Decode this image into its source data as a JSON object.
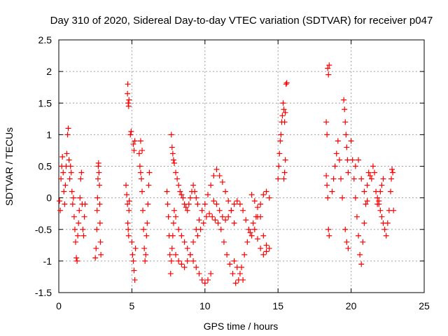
{
  "chart_data": {
    "type": "scatter",
    "title": "Day 310 of 2020, Sidereal Day-to-day VTEC variation (SDTVAR) for receiver p047",
    "xlabel": "GPS time / hours",
    "ylabel": "SDTVAR / TECUs",
    "xlim": [
      0,
      25
    ],
    "ylim": [
      -1.5,
      2.5
    ],
    "x_ticks": [
      0,
      5,
      10,
      15,
      20,
      25
    ],
    "y_ticks": [
      -1.5,
      -1,
      -0.5,
      0,
      0.5,
      1,
      1.5,
      2,
      2.5
    ],
    "x_tick_labels": [
      "0",
      "5",
      "10",
      "15",
      "20",
      "25"
    ],
    "y_tick_labels": [
      "-1.5",
      "-1",
      "-0.5",
      "0",
      "0.5",
      "1",
      "1.5",
      "2",
      "2.5"
    ],
    "grid": true,
    "marker": "+",
    "series": [
      {
        "name": "SDTVAR",
        "color": "#ff0000",
        "points": [
          [
            0.05,
            -0.05
          ],
          [
            0.1,
            -0.2
          ],
          [
            0.15,
            0.3
          ],
          [
            0.2,
            0.5
          ],
          [
            0.25,
            0.65
          ],
          [
            0.3,
            0.4
          ],
          [
            0.35,
            0.1
          ],
          [
            0.4,
            -0.1
          ],
          [
            0.45,
            0.2
          ],
          [
            0.5,
            0.5
          ],
          [
            0.55,
            0.7
          ],
          [
            0.6,
            1.0
          ],
          [
            0.65,
            1.1
          ],
          [
            0.7,
            0.6
          ],
          [
            0.75,
            0.3
          ],
          [
            0.8,
            0.5
          ],
          [
            0.85,
            0.4
          ],
          [
            0.9,
            0.1
          ],
          [
            0.95,
            -0.1
          ],
          [
            1.0,
            0.0
          ],
          [
            1.05,
            -0.3
          ],
          [
            1.1,
            -0.5
          ],
          [
            1.15,
            -0.7
          ],
          [
            1.2,
            -0.95
          ],
          [
            1.25,
            -1.0
          ],
          [
            1.3,
            -0.6
          ],
          [
            1.35,
            -0.4
          ],
          [
            1.4,
            -0.2
          ],
          [
            1.45,
            0.0
          ],
          [
            1.5,
            0.3
          ],
          [
            1.55,
            0.4
          ],
          [
            1.6,
            -0.1
          ],
          [
            1.65,
            -0.5
          ],
          [
            1.7,
            -0.6
          ],
          [
            1.75,
            -0.3
          ],
          [
            1.8,
            -0.1
          ],
          [
            2.5,
            -0.95
          ],
          [
            2.55,
            -0.8
          ],
          [
            2.6,
            -0.5
          ],
          [
            2.62,
            -0.2
          ],
          [
            2.65,
            0.0
          ],
          [
            2.68,
            0.3
          ],
          [
            2.7,
            0.5
          ],
          [
            2.72,
            0.55
          ],
          [
            2.75,
            0.4
          ],
          [
            2.78,
            0.2
          ],
          [
            2.8,
            -0.1
          ],
          [
            2.82,
            -0.4
          ],
          [
            2.85,
            -0.7
          ],
          [
            2.88,
            -0.9
          ],
          [
            4.6,
            0.2
          ],
          [
            4.65,
            0.05
          ],
          [
            4.7,
            -0.1
          ],
          [
            4.72,
            -0.4
          ],
          [
            4.75,
            -0.5
          ],
          [
            4.78,
            -0.6
          ],
          [
            4.8,
            -0.2
          ],
          [
            4.82,
            -0.05
          ],
          [
            4.7,
            1.65
          ],
          [
            4.72,
            1.8
          ],
          [
            4.75,
            1.5
          ],
          [
            4.78,
            1.45
          ],
          [
            4.8,
            1.55
          ],
          [
            4.9,
            1.0
          ],
          [
            4.95,
            1.05
          ],
          [
            5.0,
            -0.7
          ],
          [
            5.05,
            -0.9
          ],
          [
            5.1,
            -1.0
          ],
          [
            5.15,
            -1.15
          ],
          [
            5.2,
            -1.3
          ],
          [
            5.25,
            -0.8
          ],
          [
            5.1,
            0.85
          ],
          [
            5.15,
            0.75
          ],
          [
            5.2,
            0.9
          ],
          [
            5.5,
            0.7
          ],
          [
            5.55,
            0.5
          ],
          [
            5.6,
            0.4
          ],
          [
            5.65,
            0.3
          ],
          [
            5.7,
            0.1
          ],
          [
            5.75,
            -0.2
          ],
          [
            5.8,
            -0.5
          ],
          [
            5.85,
            -0.8
          ],
          [
            5.9,
            -1.0
          ],
          [
            5.95,
            -0.9
          ],
          [
            6.0,
            -0.6
          ],
          [
            6.05,
            -0.4
          ],
          [
            6.1,
            -0.1
          ],
          [
            6.15,
            0.2
          ],
          [
            6.2,
            0.4
          ],
          [
            5.6,
            0.9
          ],
          [
            5.7,
            0.75
          ],
          [
            7.4,
            0.1
          ],
          [
            7.45,
            -0.1
          ],
          [
            7.5,
            -0.3
          ],
          [
            7.55,
            -0.6
          ],
          [
            7.6,
            -0.9
          ],
          [
            7.65,
            -1.2
          ],
          [
            7.7,
            -1.0
          ],
          [
            7.75,
            -0.8
          ],
          [
            7.8,
            -0.6
          ],
          [
            7.85,
            -0.4
          ],
          [
            7.9,
            -0.2
          ],
          [
            7.7,
            1.0
          ],
          [
            7.75,
            0.8
          ],
          [
            7.8,
            0.7
          ],
          [
            7.85,
            0.6
          ],
          [
            7.9,
            0.55
          ],
          [
            8.0,
            0.4
          ],
          [
            8.1,
            0.3
          ],
          [
            8.2,
            0.2
          ],
          [
            8.3,
            0.1
          ],
          [
            8.4,
            0.05
          ],
          [
            8.5,
            0.0
          ],
          [
            8.6,
            -0.1
          ],
          [
            8.7,
            -0.15
          ],
          [
            8.8,
            -0.2
          ],
          [
            8.9,
            -0.1
          ],
          [
            9.0,
            0.0
          ],
          [
            9.1,
            0.1
          ],
          [
            9.2,
            0.2
          ],
          [
            9.3,
            0.1
          ],
          [
            9.4,
            0.0
          ],
          [
            9.5,
            -0.1
          ],
          [
            8.0,
            -0.3
          ],
          [
            8.2,
            -0.5
          ],
          [
            8.4,
            -0.6
          ],
          [
            8.6,
            -0.7
          ],
          [
            8.8,
            -0.8
          ],
          [
            9.0,
            -0.9
          ],
          [
            9.2,
            -1.0
          ],
          [
            9.4,
            -1.1
          ],
          [
            9.6,
            -1.2
          ],
          [
            9.8,
            -1.3
          ],
          [
            10.0,
            -1.35
          ],
          [
            10.2,
            -1.3
          ],
          [
            10.4,
            -1.2
          ],
          [
            8.0,
            -0.9
          ],
          [
            8.2,
            -1.0
          ],
          [
            8.4,
            -1.05
          ],
          [
            8.6,
            -1.1
          ],
          [
            8.8,
            -1.0
          ],
          [
            9.0,
            -0.9
          ],
          [
            9.2,
            -0.7
          ],
          [
            9.4,
            -0.5
          ],
          [
            9.6,
            -0.35
          ],
          [
            9.8,
            -0.2
          ],
          [
            10.0,
            -0.1
          ],
          [
            10.2,
            0.05
          ],
          [
            10.4,
            0.2
          ],
          [
            10.6,
            0.35
          ],
          [
            10.8,
            0.45
          ],
          [
            11.0,
            0.35
          ],
          [
            11.2,
            0.25
          ],
          [
            11.4,
            0.1
          ],
          [
            11.6,
            -0.05
          ],
          [
            11.8,
            -0.2
          ],
          [
            12.0,
            -0.4
          ],
          [
            9.5,
            -0.6
          ],
          [
            9.7,
            -0.5
          ],
          [
            9.9,
            -0.4
          ],
          [
            10.1,
            -0.3
          ],
          [
            10.3,
            -0.25
          ],
          [
            10.5,
            -0.3
          ],
          [
            10.7,
            -0.35
          ],
          [
            10.9,
            -0.4
          ],
          [
            11.1,
            -0.5
          ],
          [
            11.3,
            -0.7
          ],
          [
            11.5,
            -0.9
          ],
          [
            11.7,
            -1.05
          ],
          [
            11.9,
            -1.2
          ],
          [
            12.1,
            -1.35
          ],
          [
            12.3,
            -1.3
          ],
          [
            12.5,
            -1.1
          ],
          [
            12.7,
            -0.9
          ],
          [
            12.9,
            -0.7
          ],
          [
            13.1,
            -0.55
          ],
          [
            13.3,
            -0.4
          ],
          [
            13.5,
            -0.3
          ],
          [
            10.6,
            -0.05
          ],
          [
            10.8,
            -0.1
          ],
          [
            11.0,
            -0.2
          ],
          [
            11.2,
            -0.3
          ],
          [
            11.4,
            -0.35
          ],
          [
            11.6,
            -0.3
          ],
          [
            11.8,
            -0.2
          ],
          [
            12.0,
            -0.1
          ],
          [
            12.2,
            -0.05
          ],
          [
            12.4,
            -0.1
          ],
          [
            12.6,
            -0.2
          ],
          [
            12.8,
            -0.35
          ],
          [
            13.0,
            -0.5
          ],
          [
            13.2,
            -0.6
          ],
          [
            13.4,
            -0.5
          ],
          [
            13.6,
            -0.3
          ],
          [
            13.8,
            -0.1
          ],
          [
            14.0,
            0.05
          ],
          [
            14.2,
            0.1
          ],
          [
            14.4,
            0.0
          ],
          [
            12.0,
            -1.0
          ],
          [
            12.2,
            -1.1
          ],
          [
            12.4,
            -1.2
          ],
          [
            12.6,
            -1.3
          ],
          [
            13.2,
            0.05
          ],
          [
            13.4,
            -0.05
          ],
          [
            13.6,
            -0.15
          ],
          [
            13.8,
            -0.3
          ],
          [
            14.0,
            -0.6
          ],
          [
            14.2,
            -0.75
          ],
          [
            14.4,
            -0.8
          ],
          [
            13.6,
            -0.65
          ],
          [
            13.8,
            -0.8
          ],
          [
            14.0,
            -0.9
          ],
          [
            14.2,
            -0.85
          ],
          [
            15.0,
            0.3
          ],
          [
            15.05,
            0.5
          ],
          [
            15.1,
            0.7
          ],
          [
            15.15,
            0.9
          ],
          [
            15.2,
            1.0
          ],
          [
            15.25,
            1.2
          ],
          [
            15.3,
            1.3
          ],
          [
            15.35,
            1.5
          ],
          [
            15.4,
            1.4
          ],
          [
            15.45,
            1.2
          ],
          [
            15.5,
            1.35
          ],
          [
            15.55,
            1.8
          ],
          [
            15.6,
            1.82
          ],
          [
            15.5,
            0.6
          ],
          [
            15.45,
            0.4
          ],
          [
            15.4,
            0.3
          ],
          [
            18.3,
            0.35
          ],
          [
            18.35,
            0.2
          ],
          [
            18.4,
            0.0
          ],
          [
            18.45,
            -0.5
          ],
          [
            18.5,
            -0.6
          ],
          [
            18.3,
            1.2
          ],
          [
            18.35,
            1.0
          ],
          [
            18.4,
            2.05
          ],
          [
            18.45,
            1.95
          ],
          [
            18.5,
            2.1
          ],
          [
            18.7,
            0.1
          ],
          [
            18.8,
            0.3
          ],
          [
            18.9,
            0.5
          ],
          [
            19.0,
            0.7
          ],
          [
            19.1,
            0.9
          ],
          [
            19.2,
            0.6
          ],
          [
            19.3,
            0.3
          ],
          [
            19.4,
            0.0
          ],
          [
            19.5,
            1.55
          ],
          [
            19.55,
            1.4
          ],
          [
            19.6,
            1.2
          ],
          [
            19.65,
            1.0
          ],
          [
            19.7,
            0.8
          ],
          [
            19.75,
            0.6
          ],
          [
            19.8,
            0.4
          ],
          [
            19.6,
            -0.5
          ],
          [
            19.7,
            -0.7
          ],
          [
            19.8,
            -0.8
          ],
          [
            20.0,
            0.9
          ],
          [
            20.1,
            0.6
          ],
          [
            20.2,
            0.3
          ],
          [
            20.3,
            0.0
          ],
          [
            20.4,
            -0.3
          ],
          [
            20.5,
            -0.6
          ],
          [
            20.6,
            -0.9
          ],
          [
            20.7,
            -1.05
          ],
          [
            20.8,
            -0.7
          ],
          [
            20.9,
            -0.4
          ],
          [
            21.0,
            -0.1
          ],
          [
            21.1,
            0.2
          ],
          [
            21.2,
            0.4
          ],
          [
            21.3,
            0.35
          ],
          [
            21.4,
            0.3
          ],
          [
            20.3,
            0.5
          ],
          [
            20.5,
            0.6
          ],
          [
            20.7,
            0.3
          ],
          [
            20.9,
            0.1
          ],
          [
            21.1,
            -0.05
          ],
          [
            21.5,
            0.5
          ],
          [
            21.6,
            0.4
          ],
          [
            21.7,
            0.1
          ],
          [
            21.8,
            -0.1
          ],
          [
            21.9,
            -0.05
          ],
          [
            22.0,
            0.1
          ],
          [
            22.1,
            0.2
          ],
          [
            22.2,
            0.3
          ],
          [
            21.8,
            0.0
          ],
          [
            21.9,
            -0.1
          ],
          [
            22.0,
            -0.2
          ],
          [
            22.1,
            -0.3
          ],
          [
            22.2,
            -0.4
          ],
          [
            22.3,
            -0.5
          ],
          [
            22.4,
            -0.6
          ],
          [
            22.5,
            -0.4
          ],
          [
            22.6,
            -0.2
          ],
          [
            22.7,
            0.1
          ],
          [
            22.75,
            0.3
          ],
          [
            22.8,
            0.45
          ],
          [
            22.85,
            0.4
          ],
          [
            22.9,
            -0.2
          ]
        ]
      }
    ]
  }
}
